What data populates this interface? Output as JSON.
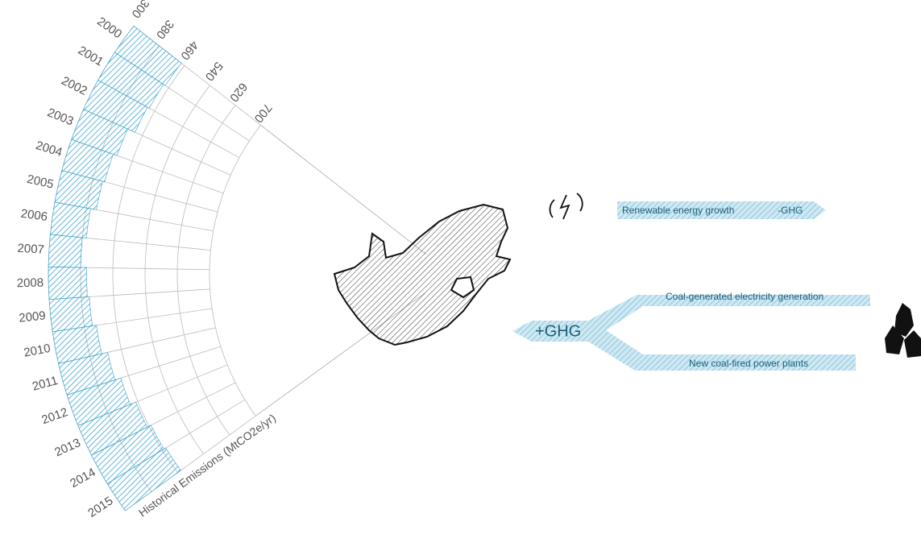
{
  "chart_data": {
    "type": "radial_bar",
    "y_label": "Historical Emissions (MtCO2e/yr)",
    "categories": [
      "2000",
      "2001",
      "2002",
      "2003",
      "2004",
      "2005",
      "2006",
      "2007",
      "2008",
      "2009",
      "2010",
      "2011",
      "2012",
      "2013",
      "2014",
      "2015"
    ],
    "values": [
      450,
      445,
      440,
      420,
      410,
      405,
      390,
      380,
      395,
      400,
      410,
      425,
      440,
      455,
      465,
      470
    ],
    "color": "#3aa6d0",
    "ylim": [
      300,
      700
    ],
    "yticks": [
      300,
      380,
      460,
      540,
      620,
      700
    ],
    "grid": true,
    "annotations": {
      "renewable": "Renewable energy growth",
      "renewable_effect": "-GHG",
      "coal_effect": "+GHG",
      "coal_generation": "Coal-generated electricity generation",
      "coal_plants": "New coal-fired power plants"
    }
  }
}
